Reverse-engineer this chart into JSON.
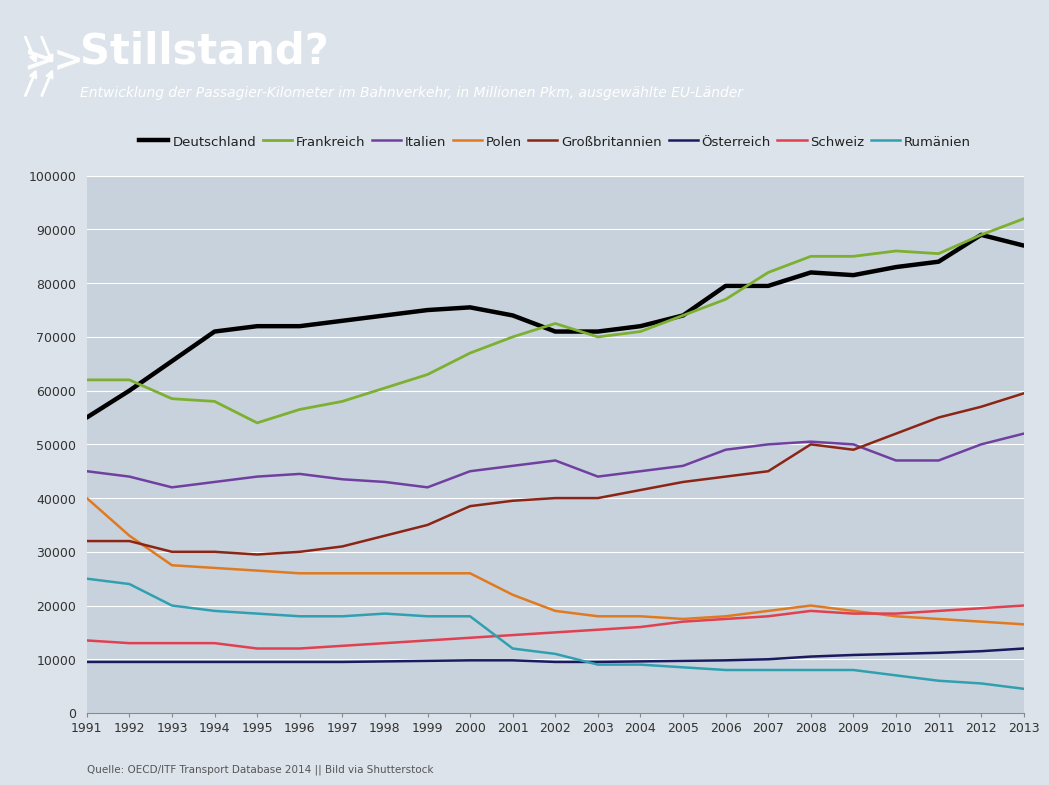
{
  "title": "Stillstand?",
  "subtitle": "Entwicklung der Passagier-Kilometer im Bahnverkehr, in Millionen Pkm, ausgewählte EU-Länder",
  "source": "Quelle: OECD/ITF Transport Database 2014 || Bild via Shutterstock",
  "header_bg": "#1e4f5e",
  "legend_bg": "#dce3ea",
  "chart_bg": "#c8d2dc",
  "fig_bg": "#dce3ea",
  "years": [
    1991,
    1992,
    1993,
    1994,
    1995,
    1996,
    1997,
    1998,
    1999,
    2000,
    2001,
    2002,
    2003,
    2004,
    2005,
    2006,
    2007,
    2008,
    2009,
    2010,
    2011,
    2012,
    2013
  ],
  "series": [
    {
      "name": "Deutschland",
      "color": "#000000",
      "linewidth": 3.2,
      "values": [
        55000,
        60000,
        65500,
        71000,
        72000,
        72000,
        73000,
        74000,
        75000,
        75500,
        74000,
        71000,
        71000,
        72000,
        74000,
        79500,
        79500,
        82000,
        81500,
        83000,
        84000,
        89000,
        87000
      ]
    },
    {
      "name": "Frankreich",
      "color": "#7db030",
      "linewidth": 2.0,
      "values": [
        62000,
        62000,
        58500,
        58000,
        54000,
        56500,
        58000,
        60500,
        63000,
        67000,
        70000,
        72500,
        70000,
        71000,
        74000,
        77000,
        82000,
        85000,
        85000,
        86000,
        85500,
        89000,
        92000
      ]
    },
    {
      "name": "Italien",
      "color": "#7040a0",
      "linewidth": 1.8,
      "values": [
        45000,
        44000,
        42000,
        43000,
        44000,
        44500,
        43500,
        43000,
        42000,
        45000,
        46000,
        47000,
        44000,
        45000,
        46000,
        49000,
        50000,
        50500,
        50000,
        47000,
        47000,
        50000,
        52000
      ]
    },
    {
      "name": "Polen",
      "color": "#e07a20",
      "linewidth": 1.8,
      "values": [
        40000,
        33000,
        27500,
        27000,
        26500,
        26000,
        26000,
        26000,
        26000,
        26000,
        22000,
        19000,
        18000,
        18000,
        17500,
        18000,
        19000,
        20000,
        19000,
        18000,
        17500,
        17000,
        16500
      ]
    },
    {
      "name": "Großbritannien",
      "color": "#8b2515",
      "linewidth": 1.8,
      "values": [
        32000,
        32000,
        30000,
        30000,
        29500,
        30000,
        31000,
        33000,
        35000,
        38500,
        39500,
        40000,
        40000,
        41500,
        43000,
        44000,
        45000,
        50000,
        49000,
        52000,
        55000,
        57000,
        59500
      ]
    },
    {
      "name": "Österreich",
      "color": "#1a1a60",
      "linewidth": 1.8,
      "values": [
        9500,
        9500,
        9500,
        9500,
        9500,
        9500,
        9500,
        9600,
        9700,
        9800,
        9800,
        9500,
        9500,
        9600,
        9700,
        9800,
        10000,
        10500,
        10800,
        11000,
        11200,
        11500,
        12000
      ]
    },
    {
      "name": "Schweiz",
      "color": "#e04050",
      "linewidth": 1.8,
      "values": [
        13500,
        13000,
        13000,
        13000,
        12000,
        12000,
        12500,
        13000,
        13500,
        14000,
        14500,
        15000,
        15500,
        16000,
        17000,
        17500,
        18000,
        19000,
        18500,
        18500,
        19000,
        19500,
        20000
      ]
    },
    {
      "name": "Rumänien",
      "color": "#30a0b0",
      "linewidth": 1.8,
      "values": [
        25000,
        24000,
        20000,
        19000,
        18500,
        18000,
        18000,
        18500,
        18000,
        18000,
        12000,
        11000,
        9000,
        9000,
        8500,
        8000,
        8000,
        8000,
        8000,
        7000,
        6000,
        5500,
        4500
      ]
    }
  ],
  "ylim": [
    0,
    100000
  ],
  "yticks": [
    0,
    10000,
    20000,
    30000,
    40000,
    50000,
    60000,
    70000,
    80000,
    90000,
    100000
  ]
}
